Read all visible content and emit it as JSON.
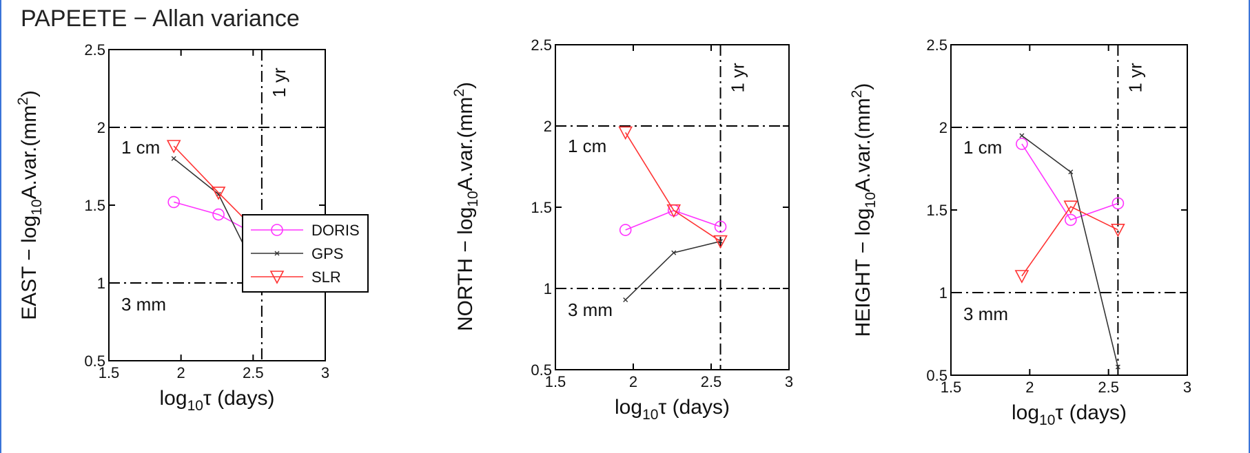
{
  "figure": {
    "title": "PAPEETE − Allan variance"
  },
  "colors": {
    "doris": "#ff33ff",
    "gps": "#333333",
    "slr": "#ff3333",
    "axis": "#000000"
  },
  "chart_data": [
    {
      "type": "line",
      "panel": "east",
      "ylabel": "EAST − log10A.var.(mm2)",
      "xlabel": "log10τ (days)",
      "xlim": [
        1.5,
        3
      ],
      "ylim": [
        0.5,
        2.5
      ],
      "xticks": [
        "1.5",
        "2",
        "2.5",
        "3"
      ],
      "yticks": [
        "0.5",
        "1",
        "1.5",
        "2",
        "2.5"
      ],
      "hlines": [
        {
          "y": 2,
          "label": "1 cm"
        },
        {
          "y": 1,
          "label": "3 mm"
        }
      ],
      "vline": {
        "x": 2.56,
        "label": "1 yr"
      },
      "legend": {
        "position": "lower-right",
        "entries": [
          "DORIS",
          "GPS",
          "SLR"
        ]
      },
      "series": [
        {
          "name": "DORIS",
          "marker": "circle",
          "x": [
            1.95,
            2.26,
            2.56
          ],
          "y": [
            1.52,
            1.44,
            1.29
          ]
        },
        {
          "name": "GPS",
          "marker": "x",
          "x": [
            1.95,
            2.26,
            2.56
          ],
          "y": [
            1.8,
            1.57,
            1.01
          ]
        },
        {
          "name": "SLR",
          "marker": "triangle",
          "x": [
            1.95,
            2.26,
            2.56
          ],
          "y": [
            1.88,
            1.58,
            1.3
          ]
        }
      ]
    },
    {
      "type": "line",
      "panel": "north",
      "ylabel": "NORTH − log10A.var.(mm2)",
      "xlabel": "log10τ (days)",
      "xlim": [
        1.5,
        3
      ],
      "ylim": [
        0.5,
        2.5
      ],
      "xticks": [
        "1.5",
        "2",
        "2.5",
        "3"
      ],
      "yticks": [
        "0.5",
        "1",
        "1.5",
        "2",
        "2.5"
      ],
      "hlines": [
        {
          "y": 2,
          "label": "1 cm"
        },
        {
          "y": 1,
          "label": "3 mm"
        }
      ],
      "vline": {
        "x": 2.56,
        "label": "1 yr"
      },
      "series": [
        {
          "name": "DORIS",
          "marker": "circle",
          "x": [
            1.95,
            2.26,
            2.56
          ],
          "y": [
            1.36,
            1.48,
            1.38
          ]
        },
        {
          "name": "GPS",
          "marker": "x",
          "x": [
            1.95,
            2.26,
            2.56
          ],
          "y": [
            0.93,
            1.22,
            1.29
          ]
        },
        {
          "name": "SLR",
          "marker": "triangle",
          "x": [
            1.95,
            2.26,
            2.56
          ],
          "y": [
            1.96,
            1.48,
            1.29
          ]
        }
      ]
    },
    {
      "type": "line",
      "panel": "height",
      "ylabel": "HEIGHT − log10A.var.(mm2)",
      "xlabel": "log10τ (days)",
      "xlim": [
        1.5,
        3
      ],
      "ylim": [
        0.5,
        2.5
      ],
      "xticks": [
        "1.5",
        "2",
        "2.5",
        "3"
      ],
      "yticks": [
        "0.5",
        "1",
        "1.5",
        "2",
        "2.5"
      ],
      "hlines": [
        {
          "y": 2,
          "label": "1 cm"
        },
        {
          "y": 1,
          "label": "3 mm"
        }
      ],
      "vline": {
        "x": 2.56,
        "label": "1 yr"
      },
      "series": [
        {
          "name": "DORIS",
          "marker": "circle",
          "x": [
            1.95,
            2.26,
            2.56
          ],
          "y": [
            1.9,
            1.44,
            1.54
          ]
        },
        {
          "name": "GPS",
          "marker": "x",
          "x": [
            1.95,
            2.26,
            2.56
          ],
          "y": [
            1.95,
            1.73,
            0.55
          ]
        },
        {
          "name": "SLR",
          "marker": "triangle",
          "x": [
            1.95,
            2.26,
            2.56
          ],
          "y": [
            1.1,
            1.52,
            1.38
          ]
        }
      ]
    }
  ]
}
